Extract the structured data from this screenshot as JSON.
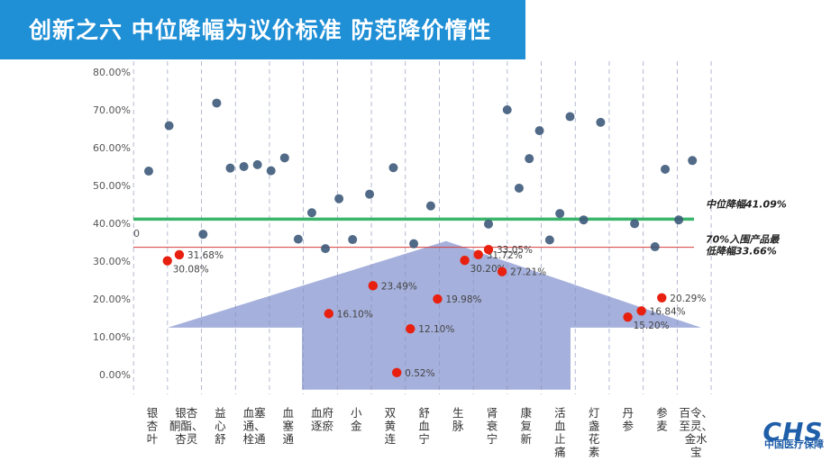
{
  "header": {
    "title": "创新之六  中位降幅为议价标准 防范降价惰性"
  },
  "colors": {
    "title_bg": "#1f8fd6",
    "grey_point": "#3d5a7a",
    "red_point": "#e8200f",
    "median_line": "#3bb56b",
    "threshold_line": "#d63a3a",
    "arrow_fill": "#5b6fc0",
    "grid_dash": "#8a94b8"
  },
  "chart_data": {
    "type": "scatter",
    "y_axis": {
      "min": 0,
      "max": 80,
      "ticks": [
        "0.00%",
        "10.00%",
        "20.00%",
        "30.00%",
        "40.00%",
        "50.00%",
        "60.00%",
        "70.00%",
        "80.00%"
      ],
      "stray_label": "0"
    },
    "categories": [
      "银杏叶",
      "银杏酮酯、杏灵",
      "益心舒",
      "血塞通、血栓通",
      "血塞通",
      "血府逐瘀",
      "小金",
      "双黄连",
      "舒血宁",
      "生脉",
      "肾衰宁",
      "康复新",
      "活血止痛",
      "灯盏花素",
      "丹参",
      "参麦",
      "百令、至灵、金水宝"
    ],
    "category_labels": [
      [
        "银",
        "杏",
        "叶"
      ],
      [
        "银杏",
        "酮酯、",
        "杏灵"
      ],
      [
        "益",
        "心",
        "舒"
      ],
      [
        "血塞",
        "通、",
        "栓通"
      ],
      [
        "血",
        "塞",
        "通"
      ],
      [
        "血府",
        "逐瘀"
      ],
      [
        "小",
        "金"
      ],
      [
        "双",
        "黄",
        "连"
      ],
      [
        "舒",
        "血",
        "宁"
      ],
      [
        "生",
        "脉"
      ],
      [
        "肾",
        "衰",
        "宁"
      ],
      [
        "康",
        "复",
        "新"
      ],
      [
        "活",
        "血",
        "止",
        "痛"
      ],
      [
        "灯",
        "盏",
        "花",
        "素"
      ],
      [
        "丹",
        "参"
      ],
      [
        "参",
        "麦"
      ],
      [
        "百令、",
        "至灵、",
        "金水",
        "宝"
      ]
    ],
    "reference_lines": [
      {
        "name": "中位降幅41.09%",
        "value": 41.09
      },
      {
        "name": "70%入围产品最低降幅33.66%",
        "lines": [
          "70%入围产品最",
          "低降幅33.66%"
        ],
        "value": 33.66
      }
    ],
    "points_other": [
      {
        "cat": 0,
        "y": 53.8
      },
      {
        "cat": 0.6,
        "y": 65.8
      },
      {
        "cat": 1.6,
        "y": 37.1
      },
      {
        "cat": 2.0,
        "y": 71.8
      },
      {
        "cat": 2.4,
        "y": 54.6
      },
      {
        "cat": 2.8,
        "y": 55.0
      },
      {
        "cat": 3.2,
        "y": 55.5
      },
      {
        "cat": 3.6,
        "y": 53.9
      },
      {
        "cat": 4.0,
        "y": 57.3
      },
      {
        "cat": 4.4,
        "y": 35.8
      },
      {
        "cat": 4.8,
        "y": 42.8
      },
      {
        "cat": 5.2,
        "y": 33.3
      },
      {
        "cat": 5.6,
        "y": 46.5
      },
      {
        "cat": 6.0,
        "y": 35.7
      },
      {
        "cat": 6.5,
        "y": 47.7
      },
      {
        "cat": 7.2,
        "y": 54.7
      },
      {
        "cat": 7.8,
        "y": 34.6
      },
      {
        "cat": 8.3,
        "y": 44.6
      },
      {
        "cat": 10.0,
        "y": 39.8
      },
      {
        "cat": 10.55,
        "y": 70.0
      },
      {
        "cat": 10.9,
        "y": 49.3
      },
      {
        "cat": 11.2,
        "y": 57.1
      },
      {
        "cat": 11.5,
        "y": 64.5
      },
      {
        "cat": 11.8,
        "y": 35.6
      },
      {
        "cat": 12.1,
        "y": 42.6
      },
      {
        "cat": 12.4,
        "y": 68.2
      },
      {
        "cat": 12.8,
        "y": 40.9
      },
      {
        "cat": 13.3,
        "y": 66.7
      },
      {
        "cat": 14.3,
        "y": 39.9
      },
      {
        "cat": 14.9,
        "y": 33.8
      },
      {
        "cat": 15.2,
        "y": 54.3
      },
      {
        "cat": 15.6,
        "y": 40.9
      },
      {
        "cat": 16.0,
        "y": 56.6
      }
    ],
    "points_highlight": [
      {
        "cat": 0.55,
        "y": 30.08,
        "label": "30.08%",
        "label_pos": "below-right"
      },
      {
        "cat": 0.9,
        "y": 31.68,
        "label": "31.68%",
        "label_pos": "right"
      },
      {
        "cat": 5.3,
        "y": 16.1,
        "label": "16.10%",
        "label_pos": "right"
      },
      {
        "cat": 6.6,
        "y": 23.49,
        "label": "23.49%",
        "label_pos": "right"
      },
      {
        "cat": 7.3,
        "y": 0.52,
        "label": "0.52%",
        "label_pos": "right"
      },
      {
        "cat": 7.7,
        "y": 12.1,
        "label": "12.10%",
        "label_pos": "right"
      },
      {
        "cat": 8.5,
        "y": 19.98,
        "label": "19.98%",
        "label_pos": "right"
      },
      {
        "cat": 9.3,
        "y": 30.2,
        "label": "30.20%",
        "label_pos": "below-right"
      },
      {
        "cat": 9.7,
        "y": 31.72,
        "label": "31.72%",
        "label_pos": "right"
      },
      {
        "cat": 10.0,
        "y": 33.05,
        "label": "33.05%",
        "label_pos": "right"
      },
      {
        "cat": 10.4,
        "y": 27.21,
        "label": "27.21%",
        "label_pos": "right"
      },
      {
        "cat": 14.1,
        "y": 15.2,
        "label": "15.20%",
        "label_pos": "below-right"
      },
      {
        "cat": 14.5,
        "y": 16.84,
        "label": "16.84%",
        "label_pos": "right"
      },
      {
        "cat": 15.1,
        "y": 20.29,
        "label": "20.29%",
        "label_pos": "right"
      }
    ]
  },
  "logo": {
    "mark": "CHS",
    "name": "中国医疗保障"
  }
}
